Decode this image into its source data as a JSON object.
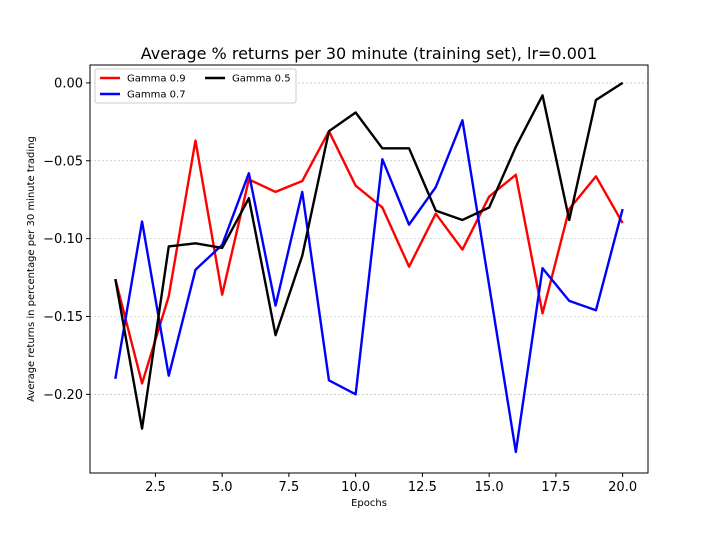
{
  "chart_data": {
    "type": "line",
    "title": "Average % returns per 30 minute (training set), lr=0.001",
    "xlabel": "Epochs",
    "ylabel": "Average returns in percentage per 30 minute trading",
    "xlim": [
      0.05,
      20.95
    ],
    "ylim": [
      -0.2505,
      0.0115
    ],
    "xticks": [
      2.5,
      5.0,
      7.5,
      10.0,
      12.5,
      15.0,
      17.5,
      20.0
    ],
    "xtick_labels": [
      "2.5",
      "5.0",
      "7.5",
      "10.0",
      "12.5",
      "15.0",
      "17.5",
      "20.0"
    ],
    "yticks": [
      0.0,
      -0.05,
      -0.1,
      -0.15,
      -0.2
    ],
    "ytick_labels": [
      "0.00",
      "−0.05",
      "−0.10",
      "−0.15",
      "−0.20"
    ],
    "grid": "horizontal",
    "legend_position": "top-left",
    "x": [
      1,
      2,
      3,
      4,
      5,
      6,
      7,
      8,
      9,
      10,
      11,
      12,
      13,
      14,
      15,
      16,
      17,
      18,
      19,
      20
    ],
    "series": [
      {
        "name": "Gamma 0.9",
        "color": "#ff0000",
        "values": [
          -0.126,
          -0.193,
          -0.137,
          -0.037,
          -0.136,
          -0.062,
          -0.07,
          -0.063,
          -0.031,
          -0.066,
          -0.08,
          -0.118,
          -0.084,
          -0.107,
          -0.073,
          -0.059,
          -0.148,
          -0.081,
          -0.06,
          -0.09
        ]
      },
      {
        "name": "Gamma 0.7",
        "color": "#0000ff",
        "values": [
          -0.19,
          -0.089,
          -0.188,
          -0.12,
          -0.104,
          -0.058,
          -0.143,
          -0.07,
          -0.191,
          -0.2,
          -0.049,
          -0.091,
          -0.067,
          -0.024,
          -0.13,
          -0.237,
          -0.119,
          -0.14,
          -0.146,
          -0.081
        ]
      },
      {
        "name": "Gamma 0.5",
        "color": "#000000",
        "values": [
          -0.126,
          -0.222,
          -0.105,
          -0.103,
          -0.106,
          -0.074,
          -0.162,
          -0.111,
          -0.031,
          -0.019,
          -0.042,
          -0.042,
          -0.082,
          -0.088,
          -0.08,
          -0.041,
          -0.008,
          -0.088,
          -0.011,
          0.0
        ]
      }
    ]
  }
}
